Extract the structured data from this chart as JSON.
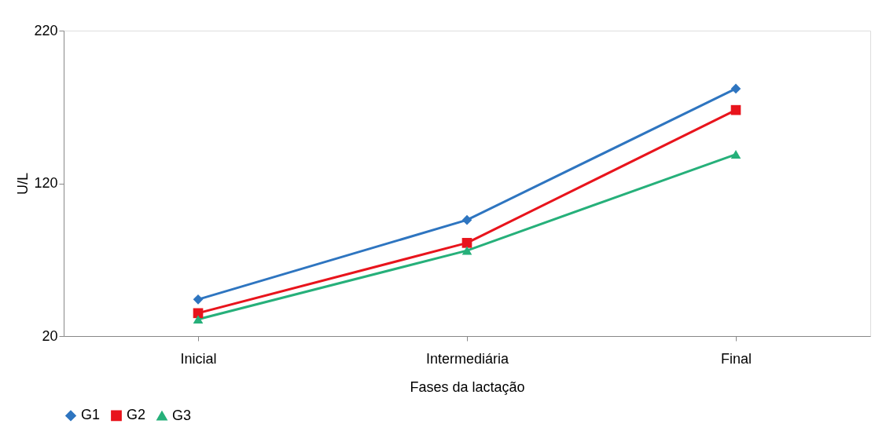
{
  "chart_data": {
    "type": "line",
    "xlabel": "Fases da lactação",
    "ylabel": "U/L",
    "categories": [
      "Inicial",
      "Intermediária",
      "Final"
    ],
    "series": [
      {
        "name": "G1",
        "color": "#2e75c0",
        "marker": "diamond",
        "values": [
          44,
          96,
          182
        ]
      },
      {
        "name": "G2",
        "color": "#e8141c",
        "marker": "square",
        "values": [
          35,
          81,
          168
        ]
      },
      {
        "name": "G3",
        "color": "#26b07a",
        "marker": "triangle",
        "values": [
          31,
          76,
          139
        ]
      }
    ],
    "ylim": [
      20,
      220
    ],
    "yticks": [
      20,
      120,
      220
    ],
    "grid": false,
    "legend": "bottom",
    "line_style": "solid"
  }
}
